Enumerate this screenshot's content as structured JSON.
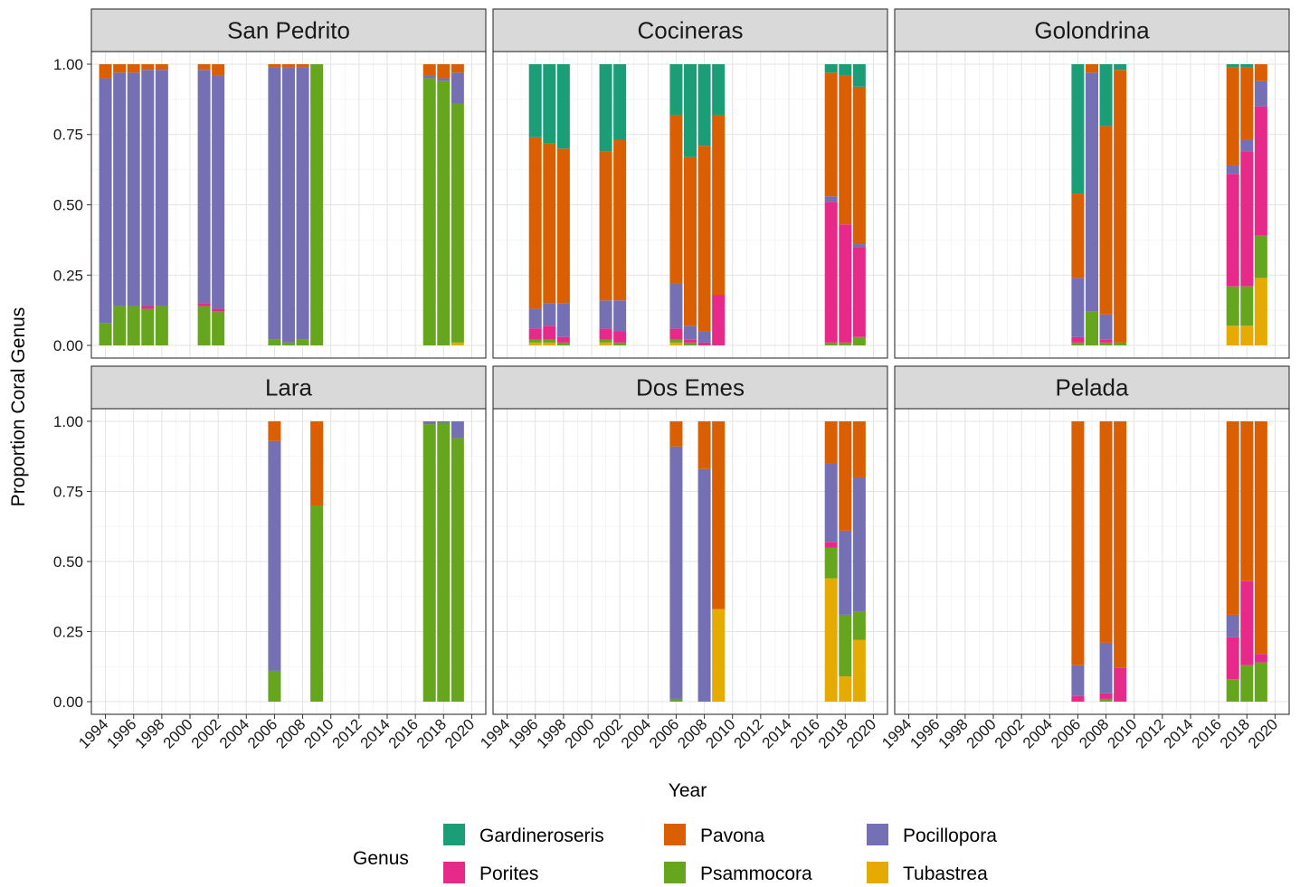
{
  "chart_data": {
    "type": "bar",
    "stacked": true,
    "xlabel": "Year",
    "ylabel": "Proportion Coral Genus",
    "xlim": [
      1993,
      2021
    ],
    "ylim": [
      -0.045,
      1.045
    ],
    "x_ticks": [
      "1994",
      "1996",
      "1998",
      "2000",
      "2002",
      "2004",
      "2006",
      "2008",
      "2010",
      "2012",
      "2014",
      "2016",
      "2018",
      "2020"
    ],
    "y_ticks": [
      "0.00",
      "0.25",
      "0.50",
      "0.75",
      "1.00"
    ],
    "grid": true,
    "legend": {
      "title": "Genus",
      "position": "bottom",
      "items": [
        {
          "name": "Gardineroseris",
          "color": "#1b9e77"
        },
        {
          "name": "Pavona",
          "color": "#d95f02"
        },
        {
          "name": "Pocillopora",
          "color": "#7570b3"
        },
        {
          "name": "Porites",
          "color": "#e7298a"
        },
        {
          "name": "Psammocora",
          "color": "#66a61e"
        },
        {
          "name": "Tubastrea",
          "color": "#e6ab02"
        }
      ]
    },
    "stack_order": [
      "Tubastrea",
      "Psammocora",
      "Porites",
      "Pocillopora",
      "Pavona",
      "Gardineroseris"
    ],
    "panels": [
      {
        "title": "San Pedrito",
        "bars": [
          {
            "year": 1994,
            "Tubastrea": 0,
            "Psammocora": 0.08,
            "Porites": 0,
            "Pocillopora": 0.87,
            "Pavona": 0.05,
            "Gardineroseris": 0
          },
          {
            "year": 1995,
            "Tubastrea": 0,
            "Psammocora": 0.14,
            "Porites": 0,
            "Pocillopora": 0.83,
            "Pavona": 0.03,
            "Gardineroseris": 0
          },
          {
            "year": 1996,
            "Tubastrea": 0,
            "Psammocora": 0.14,
            "Porites": 0,
            "Pocillopora": 0.83,
            "Pavona": 0.03,
            "Gardineroseris": 0
          },
          {
            "year": 1997,
            "Tubastrea": 0,
            "Psammocora": 0.13,
            "Porites": 0.01,
            "Pocillopora": 0.84,
            "Pavona": 0.02,
            "Gardineroseris": 0
          },
          {
            "year": 1998,
            "Tubastrea": 0,
            "Psammocora": 0.14,
            "Porites": 0,
            "Pocillopora": 0.84,
            "Pavona": 0.02,
            "Gardineroseris": 0
          },
          {
            "year": 2001,
            "Tubastrea": 0,
            "Psammocora": 0.14,
            "Porites": 0.01,
            "Pocillopora": 0.83,
            "Pavona": 0.02,
            "Gardineroseris": 0
          },
          {
            "year": 2002,
            "Tubastrea": 0,
            "Psammocora": 0.12,
            "Porites": 0.01,
            "Pocillopora": 0.83,
            "Pavona": 0.04,
            "Gardineroseris": 0
          },
          {
            "year": 2006,
            "Tubastrea": 0,
            "Psammocora": 0.02,
            "Porites": 0,
            "Pocillopora": 0.97,
            "Pavona": 0.01,
            "Gardineroseris": 0
          },
          {
            "year": 2007,
            "Tubastrea": 0,
            "Psammocora": 0.01,
            "Porites": 0,
            "Pocillopora": 0.98,
            "Pavona": 0.01,
            "Gardineroseris": 0
          },
          {
            "year": 2008,
            "Tubastrea": 0,
            "Psammocora": 0.02,
            "Porites": 0,
            "Pocillopora": 0.97,
            "Pavona": 0.01,
            "Gardineroseris": 0
          },
          {
            "year": 2009,
            "Tubastrea": 0,
            "Psammocora": 1.0,
            "Porites": 0,
            "Pocillopora": 0,
            "Pavona": 0,
            "Gardineroseris": 0
          },
          {
            "year": 2017,
            "Tubastrea": 0,
            "Psammocora": 0.95,
            "Porites": 0,
            "Pocillopora": 0.01,
            "Pavona": 0.04,
            "Gardineroseris": 0
          },
          {
            "year": 2018,
            "Tubastrea": 0,
            "Psammocora": 0.94,
            "Porites": 0,
            "Pocillopora": 0.01,
            "Pavona": 0.05,
            "Gardineroseris": 0
          },
          {
            "year": 2019,
            "Tubastrea": 0.01,
            "Psammocora": 0.85,
            "Porites": 0,
            "Pocillopora": 0.11,
            "Pavona": 0.03,
            "Gardineroseris": 0
          }
        ]
      },
      {
        "title": "Cocineras",
        "bars": [
          {
            "year": 1996,
            "Tubastrea": 0.01,
            "Psammocora": 0.01,
            "Porites": 0.04,
            "Pocillopora": 0.07,
            "Pavona": 0.61,
            "Gardineroseris": 0.26
          },
          {
            "year": 1997,
            "Tubastrea": 0.01,
            "Psammocora": 0.01,
            "Porites": 0.05,
            "Pocillopora": 0.08,
            "Pavona": 0.57,
            "Gardineroseris": 0.28
          },
          {
            "year": 1998,
            "Tubastrea": 0,
            "Psammocora": 0.01,
            "Porites": 0.02,
            "Pocillopora": 0.12,
            "Pavona": 0.55,
            "Gardineroseris": 0.3
          },
          {
            "year": 2001,
            "Tubastrea": 0.01,
            "Psammocora": 0.01,
            "Porites": 0.04,
            "Pocillopora": 0.1,
            "Pavona": 0.53,
            "Gardineroseris": 0.31
          },
          {
            "year": 2002,
            "Tubastrea": 0,
            "Psammocora": 0.01,
            "Porites": 0.04,
            "Pocillopora": 0.11,
            "Pavona": 0.57,
            "Gardineroseris": 0.27
          },
          {
            "year": 2006,
            "Tubastrea": 0.01,
            "Psammocora": 0.01,
            "Porites": 0.04,
            "Pocillopora": 0.16,
            "Pavona": 0.6,
            "Gardineroseris": 0.18
          },
          {
            "year": 2007,
            "Tubastrea": 0,
            "Psammocora": 0.01,
            "Porites": 0.01,
            "Pocillopora": 0.05,
            "Pavona": 0.6,
            "Gardineroseris": 0.33
          },
          {
            "year": 2008,
            "Tubastrea": 0,
            "Psammocora": 0,
            "Porites": 0.01,
            "Pocillopora": 0.04,
            "Pavona": 0.66,
            "Gardineroseris": 0.29
          },
          {
            "year": 2009,
            "Tubastrea": 0,
            "Psammocora": 0,
            "Porites": 0.18,
            "Pocillopora": 0,
            "Pavona": 0.64,
            "Gardineroseris": 0.18
          },
          {
            "year": 2017,
            "Tubastrea": 0,
            "Psammocora": 0.01,
            "Porites": 0.5,
            "Pocillopora": 0.02,
            "Pavona": 0.44,
            "Gardineroseris": 0.03
          },
          {
            "year": 2018,
            "Tubastrea": 0,
            "Psammocora": 0.01,
            "Porites": 0.42,
            "Pocillopora": 0,
            "Pavona": 0.53,
            "Gardineroseris": 0.04
          },
          {
            "year": 2019,
            "Tubastrea": 0,
            "Psammocora": 0.03,
            "Porites": 0.32,
            "Pocillopora": 0.01,
            "Pavona": 0.56,
            "Gardineroseris": 0.08
          }
        ]
      },
      {
        "title": "Golondrina",
        "bars": [
          {
            "year": 2006,
            "Tubastrea": 0,
            "Psammocora": 0.01,
            "Porites": 0.02,
            "Pocillopora": 0.21,
            "Pavona": 0.3,
            "Gardineroseris": 0.46
          },
          {
            "year": 2007,
            "Tubastrea": 0,
            "Psammocora": 0.12,
            "Porites": 0,
            "Pocillopora": 0.85,
            "Pavona": 0.03,
            "Gardineroseris": 0
          },
          {
            "year": 2008,
            "Tubastrea": 0,
            "Psammocora": 0.01,
            "Porites": 0.01,
            "Pocillopora": 0.09,
            "Pavona": 0.67,
            "Gardineroseris": 0.22
          },
          {
            "year": 2009,
            "Tubastrea": 0,
            "Psammocora": 0.01,
            "Porites": 0,
            "Pocillopora": 0,
            "Pavona": 0.97,
            "Gardineroseris": 0.02
          },
          {
            "year": 2017,
            "Tubastrea": 0.07,
            "Psammocora": 0.14,
            "Porites": 0.4,
            "Pocillopora": 0.03,
            "Pavona": 0.35,
            "Gardineroseris": 0.01
          },
          {
            "year": 2018,
            "Tubastrea": 0.07,
            "Psammocora": 0.14,
            "Porites": 0.48,
            "Pocillopora": 0.04,
            "Pavona": 0.26,
            "Gardineroseris": 0.01
          },
          {
            "year": 2019,
            "Tubastrea": 0.24,
            "Psammocora": 0.15,
            "Porites": 0.46,
            "Pocillopora": 0.09,
            "Pavona": 0.06,
            "Gardineroseris": 0
          }
        ]
      },
      {
        "title": "Lara",
        "bars": [
          {
            "year": 2006,
            "Tubastrea": 0,
            "Psammocora": 0.11,
            "Porites": 0,
            "Pocillopora": 0.82,
            "Pavona": 0.07,
            "Gardineroseris": 0
          },
          {
            "year": 2009,
            "Tubastrea": 0,
            "Psammocora": 0.7,
            "Porites": 0,
            "Pocillopora": 0,
            "Pavona": 0.3,
            "Gardineroseris": 0
          },
          {
            "year": 2017,
            "Tubastrea": 0,
            "Psammocora": 0.99,
            "Porites": 0,
            "Pocillopora": 0.01,
            "Pavona": 0,
            "Gardineroseris": 0
          },
          {
            "year": 2018,
            "Tubastrea": 0,
            "Psammocora": 0.995,
            "Porites": 0,
            "Pocillopora": 0.005,
            "Pavona": 0,
            "Gardineroseris": 0
          },
          {
            "year": 2019,
            "Tubastrea": 0,
            "Psammocora": 0.94,
            "Porites": 0,
            "Pocillopora": 0.06,
            "Pavona": 0,
            "Gardineroseris": 0
          }
        ]
      },
      {
        "title": "Dos Emes",
        "bars": [
          {
            "year": 2006,
            "Tubastrea": 0,
            "Psammocora": 0.01,
            "Porites": 0,
            "Pocillopora": 0.9,
            "Pavona": 0.09,
            "Gardineroseris": 0
          },
          {
            "year": 2008,
            "Tubastrea": 0,
            "Psammocora": 0,
            "Porites": 0,
            "Pocillopora": 0.83,
            "Pavona": 0.17,
            "Gardineroseris": 0
          },
          {
            "year": 2009,
            "Tubastrea": 0.33,
            "Psammocora": 0,
            "Porites": 0,
            "Pocillopora": 0,
            "Pavona": 0.67,
            "Gardineroseris": 0
          },
          {
            "year": 2017,
            "Tubastrea": 0.44,
            "Psammocora": 0.11,
            "Porites": 0.02,
            "Pocillopora": 0.28,
            "Pavona": 0.15,
            "Gardineroseris": 0
          },
          {
            "year": 2018,
            "Tubastrea": 0.09,
            "Psammocora": 0.22,
            "Porites": 0,
            "Pocillopora": 0.3,
            "Pavona": 0.39,
            "Gardineroseris": 0
          },
          {
            "year": 2019,
            "Tubastrea": 0.22,
            "Psammocora": 0.1,
            "Porites": 0,
            "Pocillopora": 0.48,
            "Pavona": 0.2,
            "Gardineroseris": 0
          }
        ]
      },
      {
        "title": "Pelada",
        "bars": [
          {
            "year": 2006,
            "Tubastrea": 0,
            "Psammocora": 0,
            "Porites": 0.02,
            "Pocillopora": 0.11,
            "Pavona": 0.87,
            "Gardineroseris": 0
          },
          {
            "year": 2008,
            "Tubastrea": 0,
            "Psammocora": 0.01,
            "Porites": 0.02,
            "Pocillopora": 0.18,
            "Pavona": 0.79,
            "Gardineroseris": 0
          },
          {
            "year": 2009,
            "Tubastrea": 0,
            "Psammocora": 0,
            "Porites": 0.12,
            "Pocillopora": 0,
            "Pavona": 0.88,
            "Gardineroseris": 0
          },
          {
            "year": 2017,
            "Tubastrea": 0,
            "Psammocora": 0.08,
            "Porites": 0.15,
            "Pocillopora": 0.08,
            "Pavona": 0.69,
            "Gardineroseris": 0
          },
          {
            "year": 2018,
            "Tubastrea": 0,
            "Psammocora": 0.13,
            "Porites": 0.3,
            "Pocillopora": 0,
            "Pavona": 0.57,
            "Gardineroseris": 0
          },
          {
            "year": 2019,
            "Tubastrea": 0,
            "Psammocora": 0.14,
            "Porites": 0.03,
            "Pocillopora": 0,
            "Pavona": 0.83,
            "Gardineroseris": 0
          }
        ]
      }
    ]
  }
}
